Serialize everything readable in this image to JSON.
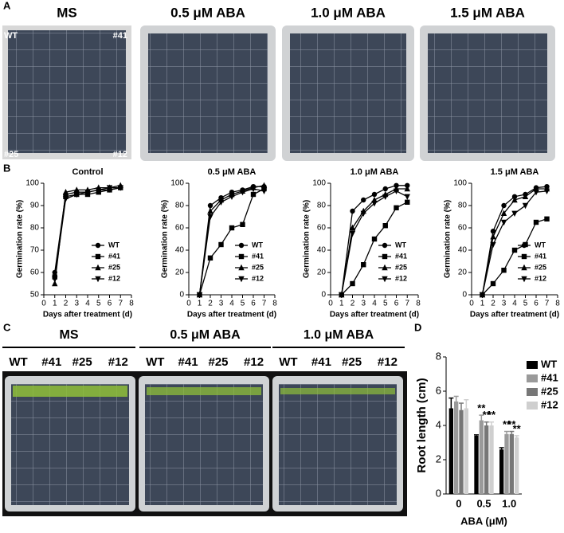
{
  "panel_letters": [
    "A",
    "B",
    "C",
    "D"
  ],
  "photo_a": {
    "headers": [
      "MS",
      "0.5 μM ABA",
      "1.0 μM ABA",
      "1.5 μM ABA"
    ],
    "corners": [
      "WT",
      "#41",
      "#25",
      "#12"
    ]
  },
  "photo_c": {
    "groups": [
      {
        "name": "MS",
        "lines": [
          "WT",
          "#41",
          "#25",
          "#12"
        ]
      },
      {
        "name": "0.5 μM ABA",
        "lines": [
          "WT",
          "#41",
          "#25",
          "#12"
        ]
      },
      {
        "name": "1.0 μM ABA",
        "lines": [
          "WT",
          "#41",
          "#25",
          "#12"
        ]
      }
    ]
  },
  "chart_data": [
    {
      "type": "line",
      "title": "Control",
      "xlabel": "Days after treatment (d)",
      "ylabel": "Germination rate (%)",
      "x": [
        1,
        2,
        3,
        4,
        5,
        6,
        7
      ],
      "xlim": [
        0,
        8
      ],
      "xticks": [
        0,
        1,
        2,
        3,
        4,
        5,
        6,
        7,
        8
      ],
      "ylim": [
        50,
        100
      ],
      "yticks": [
        50,
        60,
        70,
        80,
        90,
        100
      ],
      "legend": "lower right",
      "series": [
        {
          "name": "WT",
          "color": "#000000",
          "marker": "circle",
          "values": [
            60,
            95,
            96,
            96,
            97,
            97,
            98
          ]
        },
        {
          "name": "#41",
          "color": "#000000",
          "marker": "square",
          "values": [
            58,
            94,
            95,
            95,
            96,
            97,
            98
          ]
        },
        {
          "name": "#25",
          "color": "#000000",
          "marker": "triangle-up",
          "values": [
            55,
            96,
            97,
            97,
            98,
            98,
            99
          ]
        },
        {
          "name": "#12",
          "color": "#000000",
          "marker": "triangle-down",
          "values": [
            57,
            93,
            95,
            96,
            97,
            98,
            98
          ]
        }
      ]
    },
    {
      "type": "line",
      "title": "0.5 μM ABA",
      "xlabel": "Days after treatment (d)",
      "ylabel": "Germination rate (%)",
      "x": [
        1,
        2,
        3,
        4,
        5,
        6,
        7
      ],
      "xlim": [
        0,
        8
      ],
      "xticks": [
        0,
        1,
        2,
        3,
        4,
        5,
        6,
        7,
        8
      ],
      "ylim": [
        0,
        100
      ],
      "yticks": [
        0,
        20,
        40,
        60,
        80,
        100
      ],
      "legend": "lower right",
      "series": [
        {
          "name": "WT",
          "color": "#000000",
          "marker": "circle",
          "values": [
            0,
            80,
            87,
            92,
            94,
            97,
            97
          ]
        },
        {
          "name": "#41",
          "color": "#000000",
          "marker": "square",
          "values": [
            0,
            33,
            45,
            60,
            63,
            90,
            95
          ]
        },
        {
          "name": "#25",
          "color": "#000000",
          "marker": "triangle-up",
          "values": [
            0,
            75,
            85,
            90,
            93,
            96,
            98
          ]
        },
        {
          "name": "#12",
          "color": "#000000",
          "marker": "triangle-down",
          "values": [
            0,
            70,
            83,
            88,
            92,
            95,
            93
          ]
        }
      ]
    },
    {
      "type": "line",
      "title": "1.0 μM ABA",
      "xlabel": "Days after treatment (d)",
      "ylabel": "Germination rate (%)",
      "x": [
        1,
        2,
        3,
        4,
        5,
        6,
        7
      ],
      "xlim": [
        0,
        8
      ],
      "xticks": [
        0,
        1,
        2,
        3,
        4,
        5,
        6,
        7,
        8
      ],
      "ylim": [
        0,
        100
      ],
      "yticks": [
        0,
        20,
        40,
        60,
        80,
        100
      ],
      "legend": "lower right",
      "series": [
        {
          "name": "WT",
          "color": "#000000",
          "marker": "circle",
          "values": [
            0,
            75,
            85,
            90,
            95,
            98,
            98
          ]
        },
        {
          "name": "#41",
          "color": "#000000",
          "marker": "square",
          "values": [
            0,
            10,
            27,
            50,
            62,
            78,
            83
          ]
        },
        {
          "name": "#25",
          "color": "#000000",
          "marker": "triangle-up",
          "values": [
            0,
            60,
            75,
            85,
            90,
            95,
            95
          ]
        },
        {
          "name": "#12",
          "color": "#000000",
          "marker": "triangle-down",
          "values": [
            0,
            55,
            73,
            82,
            88,
            93,
            88
          ]
        }
      ]
    },
    {
      "type": "line",
      "title": "1.5 μM ABA",
      "xlabel": "Days after treatment (d)",
      "ylabel": "Germination rate (%)",
      "x": [
        1,
        2,
        3,
        4,
        5,
        6,
        7
      ],
      "xlim": [
        0,
        8
      ],
      "xticks": [
        0,
        1,
        2,
        3,
        4,
        5,
        6,
        7,
        8
      ],
      "ylim": [
        0,
        100
      ],
      "yticks": [
        0,
        20,
        40,
        60,
        80,
        100
      ],
      "legend": "lower right",
      "series": [
        {
          "name": "WT",
          "color": "#000000",
          "marker": "circle",
          "values": [
            0,
            57,
            80,
            88,
            90,
            96,
            97
          ]
        },
        {
          "name": "#41",
          "color": "#000000",
          "marker": "square",
          "values": [
            0,
            10,
            22,
            40,
            45,
            65,
            68
          ]
        },
        {
          "name": "#25",
          "color": "#000000",
          "marker": "triangle-up",
          "values": [
            0,
            52,
            73,
            85,
            88,
            95,
            95
          ]
        },
        {
          "name": "#12",
          "color": "#000000",
          "marker": "triangle-down",
          "values": [
            0,
            45,
            65,
            73,
            80,
            92,
            93
          ]
        }
      ]
    },
    {
      "type": "bar",
      "xlabel": "ABA (μM)",
      "ylabel": "Root length (cm)",
      "categories": [
        "0",
        "0.5",
        "1.0"
      ],
      "ylim": [
        0,
        8
      ],
      "yticks": [
        0,
        2,
        4,
        6,
        8
      ],
      "legend": "upper right",
      "series": [
        {
          "name": "WT",
          "color": "#000000",
          "values": [
            5.0,
            3.4,
            2.6
          ],
          "errors": [
            0.6,
            0.05,
            0.1
          ],
          "significance": [
            null,
            null,
            null
          ]
        },
        {
          "name": "#41",
          "color": "#9a9a9a",
          "values": [
            5.4,
            4.3,
            3.5
          ],
          "errors": [
            0.3,
            0.3,
            0.15
          ],
          "significance": [
            null,
            "**",
            "**"
          ]
        },
        {
          "name": "#25",
          "color": "#777777",
          "values": [
            4.9,
            4.0,
            3.5
          ],
          "errors": [
            0.4,
            0.2,
            0.15
          ],
          "significance": [
            null,
            "**",
            "**"
          ]
        },
        {
          "name": "#12",
          "color": "#cfcfcf",
          "values": [
            5.0,
            4.0,
            3.3
          ],
          "errors": [
            0.5,
            0.2,
            0.1
          ],
          "significance": [
            null,
            "**",
            "**"
          ]
        }
      ]
    }
  ]
}
